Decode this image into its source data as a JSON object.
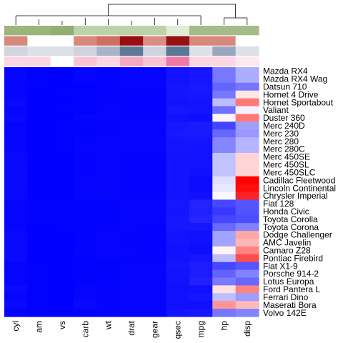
{
  "chart_data": {
    "type": "heatmap",
    "title": "",
    "columns": [
      "cyl",
      "am",
      "vs",
      "carb",
      "wt",
      "drat",
      "gear",
      "qsec",
      "mpg",
      "hp",
      "disp"
    ],
    "rows": [
      "Mazda RX4",
      "Mazda RX4 Wag",
      "Datsun 710",
      "Hornet 4 Drive",
      "Hornet Sportabout",
      "Valiant",
      "Duster 360",
      "Merc 240D",
      "Merc 230",
      "Merc 280",
      "Merc 280C",
      "Merc 450SE",
      "Merc 450SL",
      "Merc 450SLC",
      "Cadillac Fleetwood",
      "Lincoln Continental",
      "Chrysler Imperial",
      "Fiat 128",
      "Honda Civic",
      "Toyota Corolla",
      "Toyota Corona",
      "Dodge Challenger",
      "AMC Javelin",
      "Camaro Z28",
      "Pontiac Firebird",
      "Fiat X1-9",
      "Porsche 914-2",
      "Lotus Europa",
      "Ford Pantera L",
      "Ferrari Dino",
      "Maserati Bora",
      "Volvo 142E"
    ],
    "values": [
      [
        6,
        1,
        0,
        4,
        2.62,
        3.9,
        4,
        16.46,
        21.0,
        110,
        160.0
      ],
      [
        6,
        1,
        0,
        4,
        2.875,
        3.9,
        4,
        17.02,
        21.0,
        110,
        160.0
      ],
      [
        4,
        1,
        1,
        1,
        2.32,
        3.85,
        4,
        18.61,
        22.8,
        93,
        108.0
      ],
      [
        6,
        0,
        1,
        1,
        3.215,
        3.08,
        3,
        19.44,
        21.4,
        110,
        258.0
      ],
      [
        8,
        0,
        0,
        2,
        3.44,
        3.15,
        3,
        17.02,
        18.7,
        175,
        360.0
      ],
      [
        6,
        0,
        1,
        1,
        3.46,
        2.76,
        3,
        20.22,
        18.1,
        105,
        225.0
      ],
      [
        8,
        0,
        0,
        4,
        3.57,
        3.21,
        3,
        15.84,
        14.3,
        245,
        360.0
      ],
      [
        4,
        0,
        1,
        2,
        3.19,
        3.69,
        4,
        20.0,
        24.4,
        62,
        146.7
      ],
      [
        4,
        0,
        1,
        2,
        3.15,
        3.92,
        4,
        22.9,
        22.8,
        95,
        140.8
      ],
      [
        6,
        0,
        1,
        4,
        3.44,
        3.92,
        4,
        18.3,
        19.2,
        123,
        167.6
      ],
      [
        6,
        0,
        1,
        4,
        3.44,
        3.92,
        4,
        18.9,
        17.8,
        123,
        167.6
      ],
      [
        8,
        0,
        0,
        3,
        4.07,
        3.07,
        3,
        17.4,
        16.4,
        180,
        275.8
      ],
      [
        8,
        0,
        0,
        3,
        3.73,
        3.07,
        3,
        17.6,
        17.3,
        180,
        275.8
      ],
      [
        8,
        0,
        0,
        3,
        3.78,
        3.07,
        3,
        18.0,
        15.2,
        180,
        275.8
      ],
      [
        8,
        0,
        0,
        4,
        5.25,
        2.93,
        3,
        17.98,
        10.4,
        205,
        472.0
      ],
      [
        8,
        0,
        0,
        4,
        5.424,
        3.0,
        3,
        17.82,
        10.4,
        215,
        460.0
      ],
      [
        8,
        0,
        0,
        4,
        5.345,
        3.23,
        3,
        17.42,
        14.7,
        230,
        440.0
      ],
      [
        4,
        1,
        1,
        1,
        2.2,
        4.08,
        4,
        19.47,
        32.4,
        66,
        78.7
      ],
      [
        4,
        1,
        1,
        2,
        1.615,
        4.93,
        4,
        18.52,
        30.4,
        52,
        75.7
      ],
      [
        4,
        1,
        1,
        1,
        1.835,
        4.22,
        4,
        19.9,
        33.9,
        65,
        71.1
      ],
      [
        4,
        0,
        1,
        1,
        2.465,
        3.7,
        3,
        20.01,
        21.5,
        97,
        120.1
      ],
      [
        8,
        0,
        0,
        2,
        3.52,
        2.76,
        3,
        16.87,
        15.5,
        150,
        318.0
      ],
      [
        8,
        0,
        0,
        2,
        3.435,
        3.15,
        3,
        17.3,
        15.2,
        150,
        304.0
      ],
      [
        8,
        0,
        0,
        4,
        3.84,
        3.73,
        3,
        15.41,
        13.3,
        245,
        350.0
      ],
      [
        8,
        0,
        0,
        2,
        3.845,
        3.08,
        3,
        17.05,
        19.2,
        175,
        400.0
      ],
      [
        4,
        1,
        1,
        1,
        1.935,
        4.08,
        4,
        18.9,
        27.3,
        66,
        79.0
      ],
      [
        4,
        1,
        0,
        2,
        2.14,
        4.43,
        5,
        16.7,
        26.0,
        91,
        120.3
      ],
      [
        4,
        1,
        1,
        2,
        1.513,
        3.77,
        5,
        16.9,
        30.4,
        113,
        95.1
      ],
      [
        8,
        1,
        0,
        4,
        3.17,
        4.22,
        5,
        14.5,
        15.8,
        264,
        351.0
      ],
      [
        6,
        1,
        0,
        6,
        2.77,
        3.62,
        5,
        15.5,
        19.7,
        175,
        145.0
      ],
      [
        8,
        1,
        0,
        8,
        3.57,
        3.54,
        5,
        14.6,
        15.0,
        335,
        301.0
      ],
      [
        4,
        1,
        1,
        2,
        2.78,
        4.11,
        4,
        18.6,
        21.4,
        109,
        121.0
      ]
    ],
    "color_scale": {
      "low": "#0000ff",
      "mid": "#ffffff",
      "high": "#ff0000",
      "range": [
        0,
        472
      ]
    },
    "column_annotations": [
      {
        "colors": [
          "#9cb57e",
          "#9cb57e",
          "#93ae74",
          "#bed2a8",
          "#bed2a8",
          "#bed2a8",
          "#bed2a8",
          "#e2ecd6",
          "#a5bb88",
          "#a5bb88",
          "#a5bb88"
        ]
      },
      {
        "colors": [
          "#d8897c",
          "#ffffff",
          "#ffffff",
          "#d8897c",
          "#cf6f64",
          "#990f0f",
          "#d98e84",
          "#941414",
          "#d8897c",
          "#d8897c",
          "#ffffff"
        ]
      },
      {
        "colors": [
          "#d0d6e0",
          "#dde0e7",
          "#dde0e7",
          "#cfd3de",
          "#a9b4c8",
          "#5e7898",
          "#cfd3de",
          "#5c7696",
          "#dde0e7",
          "#98a6be",
          "#dde0e7"
        ]
      },
      {
        "colors": [
          "#fbd6e3",
          "#fbd6e3",
          "#ffffff",
          "#f9c4d6",
          "#fbd6e3",
          "#f4a8c2",
          "#f9c4d6",
          "#ee7ba6",
          "#fbd6e3",
          "#fbd6e3",
          "#fde8f0"
        ]
      }
    ],
    "dendrogram": "columns",
    "grid": false,
    "legend": "none"
  }
}
